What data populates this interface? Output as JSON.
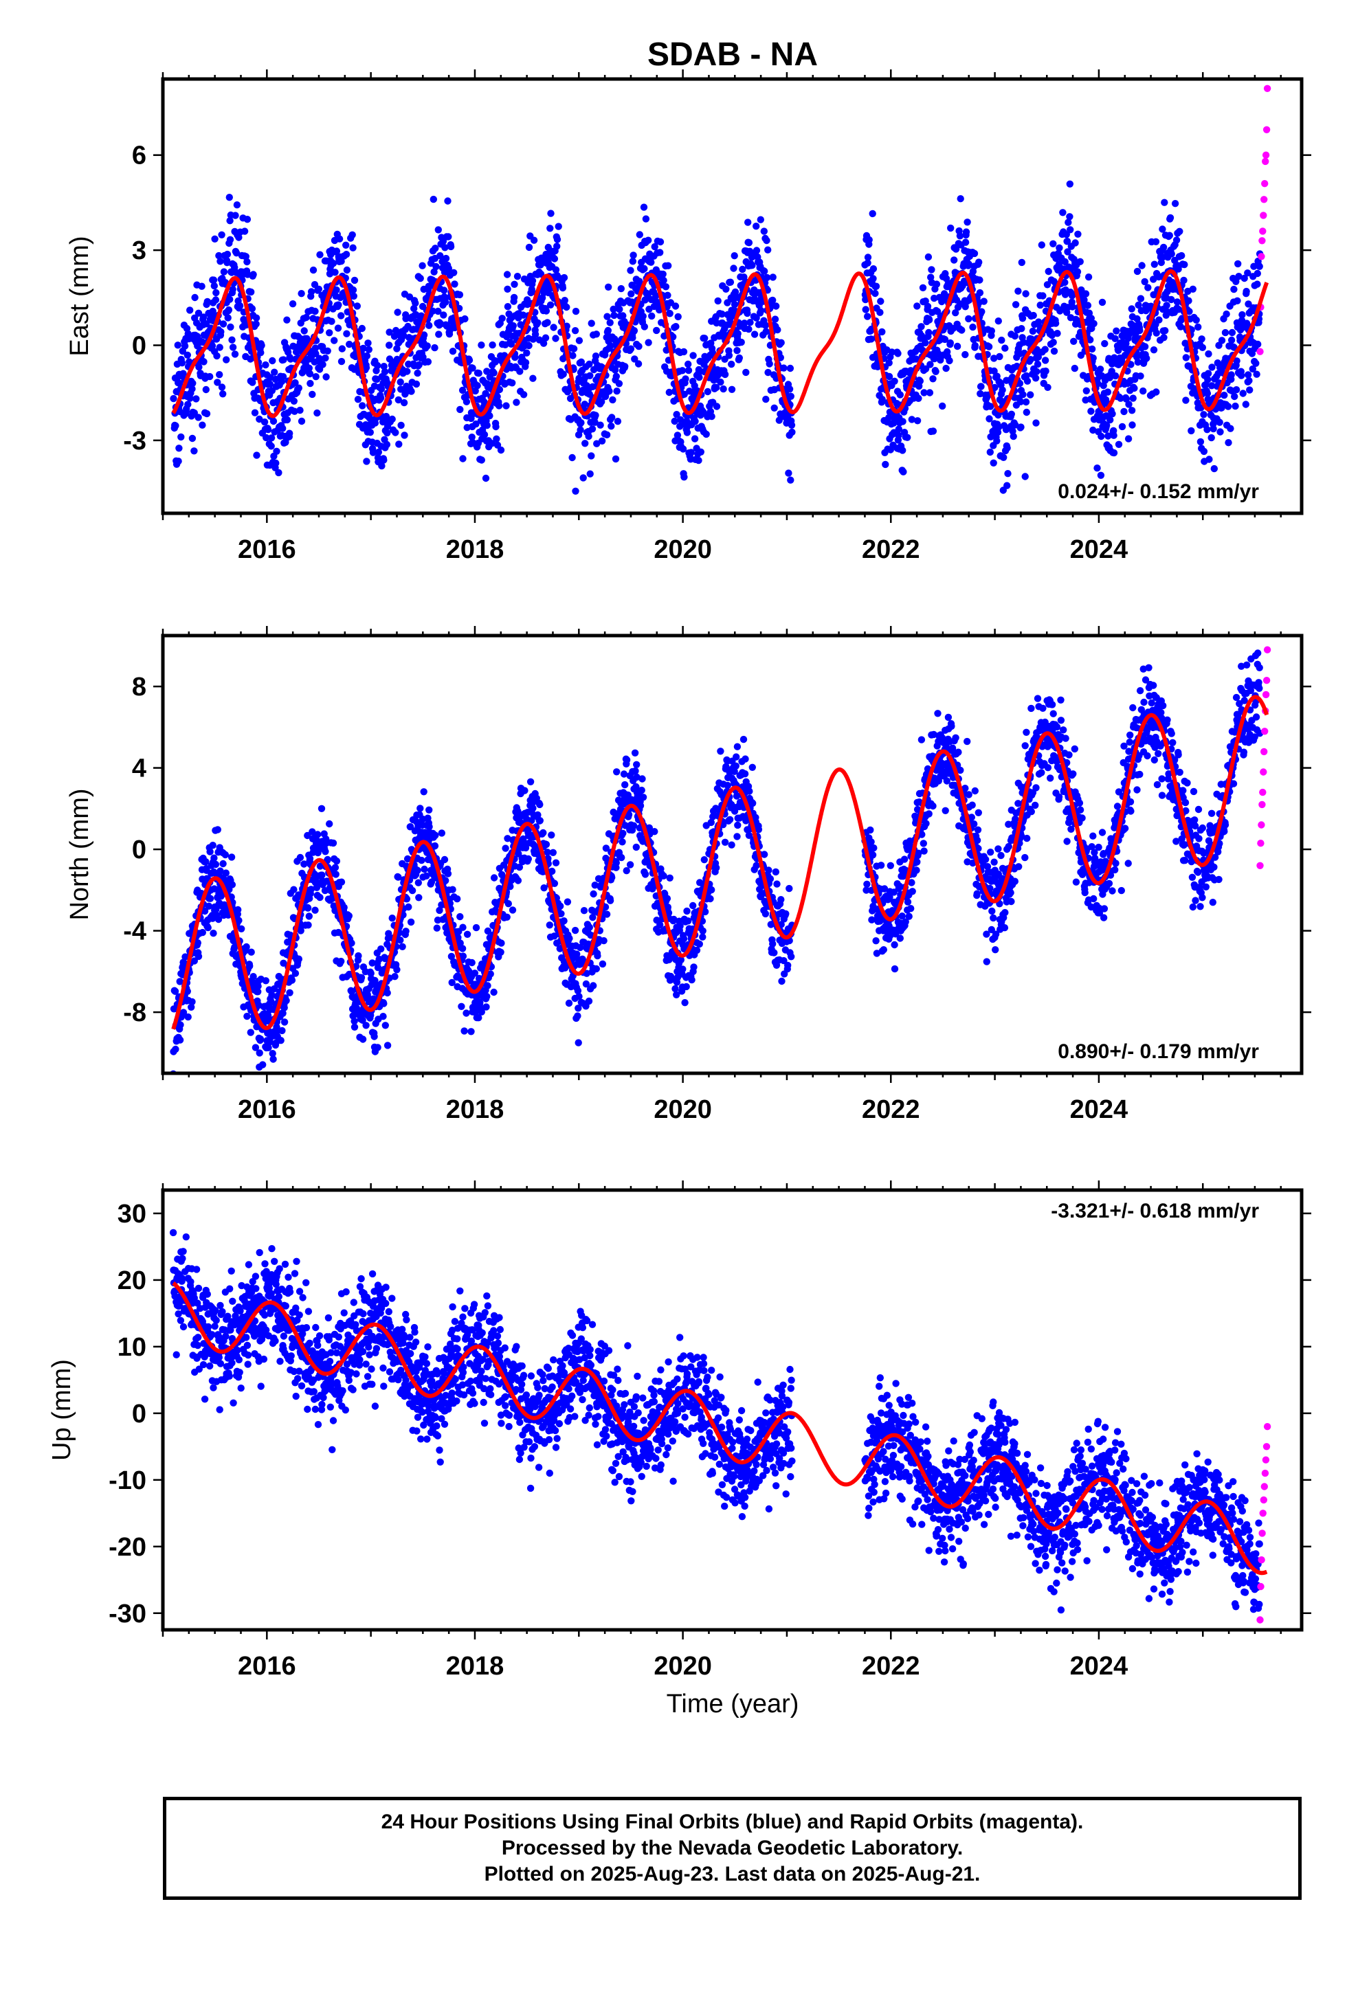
{
  "title": "SDAB - NA",
  "xlabel": "Time (year)",
  "colors": {
    "final": "#0000ff",
    "rapid": "#ff00ff",
    "model": "#ff0000",
    "axis": "#000000"
  },
  "footer": {
    "line1": "24 Hour Positions Using Final Orbits (blue) and Rapid Orbits (magenta).",
    "line2": "Processed by the Nevada Geodetic Laboratory.",
    "line3": "Plotted on 2025-Aug-23. Last data on 2025-Aug-21."
  },
  "chart_data": [
    {
      "type": "scatter",
      "ylabel": "East (mm)",
      "rate_label": "0.024+/- 0.152 mm/yr",
      "rate_position": "bottom-right",
      "xlim": [
        2015.0,
        2025.95
      ],
      "ylim": [
        -5.3,
        8.4
      ],
      "xticks": [
        2016,
        2018,
        2020,
        2022,
        2024
      ],
      "yticks": [
        -3,
        0,
        3,
        6
      ],
      "data_span": [
        2015.1,
        2025.55
      ],
      "gap": [
        2021.05,
        2021.75
      ],
      "model": {
        "offset": 0.0,
        "rate": 0.024,
        "ref_year": 2020.3,
        "amp_annual": 1.9,
        "phase_annual": 0.38,
        "amp_semi": 0.6,
        "phase_semi": 0.62
      },
      "series": [
        {
          "name": "Final Orbits (blue)",
          "noise_sd": 1.0
        },
        {
          "name": "Rapid Orbits (magenta)",
          "x_range": [
            2025.55,
            2025.62
          ],
          "y_values": [
            -0.2,
            1.2,
            2.8,
            3.3,
            3.6,
            4.1,
            4.6,
            5.1,
            5.8,
            6.0,
            6.8,
            8.1
          ]
        }
      ]
    },
    {
      "type": "scatter",
      "ylabel": "North (mm)",
      "rate_label": "0.890+/- 0.179 mm/yr",
      "rate_position": "bottom-right",
      "xlim": [
        2015.0,
        2025.95
      ],
      "ylim": [
        -11.0,
        10.5
      ],
      "xticks": [
        2016,
        2018,
        2020,
        2022,
        2024
      ],
      "yticks": [
        -8,
        -4,
        0,
        4,
        8
      ],
      "data_span": [
        2015.1,
        2025.55
      ],
      "gap": [
        2021.05,
        2021.75
      ],
      "model": {
        "offset": -1.05,
        "rate": 0.89,
        "ref_year": 2020.3,
        "amp_annual": 3.9,
        "phase_annual": 0.25,
        "amp_semi": 0.0,
        "phase_semi": 0.0
      },
      "series": [
        {
          "name": "Final Orbits (blue)",
          "noise_sd": 1.1
        },
        {
          "name": "Rapid Orbits (magenta)",
          "x_range": [
            2025.55,
            2025.62
          ],
          "y_values": [
            -0.8,
            0.3,
            1.2,
            2.2,
            2.8,
            3.8,
            4.8,
            5.8,
            6.8,
            7.6,
            8.3,
            9.8
          ]
        }
      ]
    },
    {
      "type": "scatter",
      "ylabel": "Up (mm)",
      "rate_label": "-3.321+/- 0.618 mm/yr",
      "rate_position": "top-right",
      "xlim": [
        2015.0,
        2025.95
      ],
      "ylim": [
        -32.5,
        33.5
      ],
      "xticks": [
        2016,
        2018,
        2020,
        2022,
        2024
      ],
      "yticks": [
        -30,
        -20,
        -10,
        0,
        10,
        20,
        30
      ],
      "data_span": [
        2015.1,
        2025.55
      ],
      "gap": [
        2021.05,
        2021.75
      ],
      "model": {
        "offset": -2.0,
        "rate": -3.321,
        "ref_year": 2020.3,
        "amp_annual": 4.5,
        "phase_annual": 0.8,
        "amp_semi": 0.0,
        "phase_semi": 0.0
      },
      "series": [
        {
          "name": "Final Orbits (blue)",
          "noise_sd": 3.8
        },
        {
          "name": "Rapid Orbits (magenta)",
          "x_range": [
            2025.55,
            2025.62
          ],
          "y_values": [
            -31,
            -26,
            -22,
            -18,
            -15,
            -13,
            -11,
            -9,
            -7,
            -5,
            -2
          ]
        }
      ]
    }
  ]
}
